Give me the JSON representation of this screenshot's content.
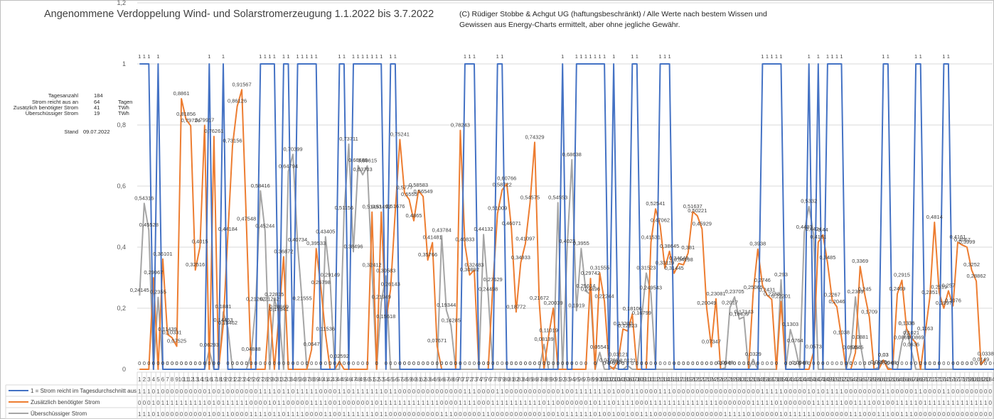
{
  "header": {
    "title": "Angenommene Verdoppelung Wind- und Solarstromerzeugung 1.1.2022 bis 3.7.2022",
    "copyright_line1": "(C) Rüdiger Stobbe & Achgut UG (haftungsbeschränkt) / Alle Werte nach bestem Wissen und",
    "copyright_line2": "Gewissen aus Energy-Charts ermittelt, aber ohne jegliche Gewähr."
  },
  "stats": {
    "rows": [
      {
        "label": "Tagesanzahl",
        "value": "184",
        "unit": ""
      },
      {
        "label": "Strom reicht aus an",
        "value": "64",
        "unit": "Tagen"
      },
      {
        "label": "Zusätzlich benötigter Strom",
        "value": "41",
        "unit": "TWh"
      },
      {
        "label": "Überschüssiger Strom",
        "value": "19",
        "unit": "TWh"
      }
    ],
    "stand_label": "Stand",
    "stand_value": "09.07.2022"
  },
  "chart_data": {
    "type": "line",
    "title": "Angenommene Verdoppelung Wind- und Solarstromerzeugung 1.1.2022 bis 3.7.2022",
    "xlabel": "",
    "ylabel": "",
    "ylim": [
      0,
      1.2
    ],
    "yticks": [
      "0",
      "0,2",
      "0,4",
      "0,6",
      "0,8",
      "1",
      "1,2"
    ],
    "ytick_values": [
      0,
      0.2,
      0.4,
      0.6,
      0.8,
      1,
      1.2
    ],
    "grid": true,
    "legend": "bottom-table",
    "days": 184,
    "series": [
      {
        "name": "1 = Strom reicht im Tagesdurchschnitt aus",
        "color": "#4472c4",
        "values": [
          1,
          1,
          1,
          0,
          1,
          0,
          0,
          0,
          0,
          0,
          0,
          0,
          0,
          0,
          0,
          1,
          0,
          0,
          1,
          0,
          0,
          0,
          0,
          0,
          0,
          0,
          1,
          1,
          1,
          1,
          0,
          1,
          1,
          0,
          1,
          1,
          1,
          1,
          1,
          0,
          0,
          0,
          0,
          1,
          1,
          0,
          1,
          1,
          1,
          1,
          1,
          1,
          1,
          0,
          1,
          1,
          0,
          0,
          0,
          0,
          0,
          0,
          0,
          0,
          0,
          0,
          0,
          0,
          0,
          0,
          1,
          1,
          1,
          0,
          0,
          0,
          0,
          1,
          1,
          0,
          0,
          0,
          0,
          0,
          0,
          0,
          0,
          0,
          0,
          0,
          0,
          1,
          0,
          0,
          1,
          1,
          1,
          1,
          1,
          1,
          1,
          0,
          1,
          0,
          0,
          0,
          1,
          1,
          0,
          0,
          0,
          0,
          1,
          1,
          1,
          0,
          0,
          0,
          0,
          0,
          0,
          0,
          0,
          0,
          0,
          0,
          0,
          0,
          0,
          0,
          0,
          0,
          0,
          0,
          1,
          1,
          1,
          1,
          1,
          0,
          0,
          0,
          0,
          0,
          1,
          0,
          1,
          0,
          1,
          1,
          1,
          1,
          0,
          0,
          0,
          0,
          0,
          0,
          0,
          0,
          1,
          1,
          0,
          0,
          0,
          0,
          0,
          1,
          1,
          0,
          0,
          0,
          0,
          1,
          1,
          0,
          0,
          0,
          0,
          0,
          0,
          0,
          0,
          0,
          0,
          0
        ]
      },
      {
        "name": "Zusätzlich benötigter Strom",
        "color": "#ed7d31",
        "values": [
          0,
          0,
          0,
          0.29967,
          0,
          0.36101,
          0.11439,
          0.10331,
          0.07525,
          0.8861,
          0.81856,
          0.79724,
          0.32516,
          0.4015,
          0.79917,
          0,
          0.76261,
          0,
          0.14463,
          0.44184,
          0.73156,
          0.86126,
          0.91567,
          0.47548,
          0,
          0,
          0,
          0,
          0.21262,
          0,
          0.17941,
          0.36872,
          0,
          0,
          0,
          0,
          0,
          0.0647,
          0.39533,
          0.26798,
          0.11536,
          0,
          0,
          0.02592,
          0,
          0,
          0,
          0,
          0,
          0,
          0.51493,
          0,
          0.51493,
          0.15618,
          0.26143,
          0.51676,
          0.75241,
          0.5777,
          0.5555,
          0.4865,
          0.58583,
          0.56549,
          0.35766,
          0.41481,
          0.07671,
          0,
          0,
          0,
          0,
          0.78243,
          0.40833,
          0.30892,
          0.32483,
          0,
          0,
          0,
          0.27629,
          0.51009,
          0.58722,
          0.60766,
          0.46071,
          0.18772,
          0.34933,
          0.41097,
          0.54575,
          0.74329,
          0.21672,
          0,
          0.11019,
          0.20039,
          0,
          0,
          0,
          0,
          0,
          0,
          0,
          0.29742,
          0,
          0.31555,
          0.22244,
          0.01266,
          0,
          0.03121,
          0.13202,
          0.12523,
          0.18106,
          0,
          0,
          0,
          0.41531,
          0.52541,
          0.47062,
          0.33119,
          0.38645,
          0.31445,
          0.34648,
          0.34198,
          0.381,
          0.51637,
          0.50221,
          0.45929,
          0.20049,
          0.07347,
          0.23081,
          0,
          0,
          0,
          0,
          0,
          0,
          0,
          0.25065,
          0.3938,
          0.2746,
          0.2431,
          0.2288,
          0,
          0.22201,
          0,
          0,
          0,
          0,
          0,
          0,
          0.0573,
          0.4161,
          0.44,
          0.3485,
          0.2267,
          0.2046,
          0.1038,
          0,
          0,
          0.0545,
          0.3369,
          0.245,
          0.1709,
          0,
          0,
          0.03,
          0,
          0,
          0.2469,
          0.2915,
          0.1336,
          0.1021,
          0.0869,
          0,
          0.1163,
          0.2351,
          0.4814,
          0.2519,
          0.1997,
          0.257,
          0.2076,
          0.4161,
          0.4067,
          0.3999,
          0.3252,
          0.28862,
          0.0149,
          0.0338
        ]
      },
      {
        "name": "Überschüssiger Strom",
        "color": "#a5a5a5",
        "values": [
          0.24145,
          0.54316,
          0.45528,
          0,
          0.2355,
          0,
          0,
          0,
          0,
          0,
          0,
          0,
          0,
          0,
          0,
          0.06293,
          0,
          0,
          0.1881,
          0.13462,
          0,
          0,
          0,
          0,
          0.04888,
          0.21262,
          0.58416,
          0.45244,
          0,
          0.22815,
          0.18669,
          0,
          0.64794,
          0.70399,
          0.40734,
          0.21555,
          0,
          0,
          0,
          0,
          0.43405,
          0.29149,
          0,
          0,
          0.51156,
          0.73711,
          0.38496,
          0.66689,
          0.63703,
          0.66615,
          0.32412,
          0,
          0.21949,
          0.30583,
          0,
          0,
          0,
          0,
          0,
          0,
          0,
          0,
          0,
          0,
          0,
          0.43784,
          0.19344,
          0.14285,
          0,
          0,
          0,
          0,
          0,
          0,
          0.44132,
          0.24498,
          0,
          0,
          0,
          0,
          0,
          0,
          0,
          0,
          0,
          0,
          0,
          0.08139,
          0,
          0,
          0.54553,
          0,
          0.4023,
          0.68638,
          0.1919,
          0.3955,
          0.25614,
          0.24496,
          0,
          0.05541,
          0,
          0,
          0.0065,
          0,
          0,
          0.0121,
          0,
          0,
          0.16799,
          0.31523,
          0.249543,
          0,
          0,
          0,
          0,
          0,
          0,
          0,
          0,
          0,
          0,
          0,
          0,
          0,
          0,
          0,
          0.0048,
          0.2017,
          0.23705,
          0.16439,
          0.17143,
          0,
          0.0329,
          0,
          0,
          0,
          0,
          0,
          0.293,
          0,
          0.1303,
          0.0764,
          0.0048,
          0.4493,
          0.5332,
          0.4424,
          0,
          0,
          0,
          0,
          0,
          0,
          0,
          0.0545,
          0.2369,
          0.0881,
          0,
          0,
          0,
          0.0065,
          0.03,
          0.0048,
          0,
          0,
          0.0869,
          0.1336,
          0.0636,
          0,
          0,
          0,
          0,
          0,
          0,
          0,
          0,
          0,
          0,
          0,
          0,
          0
        ]
      }
    ]
  }
}
